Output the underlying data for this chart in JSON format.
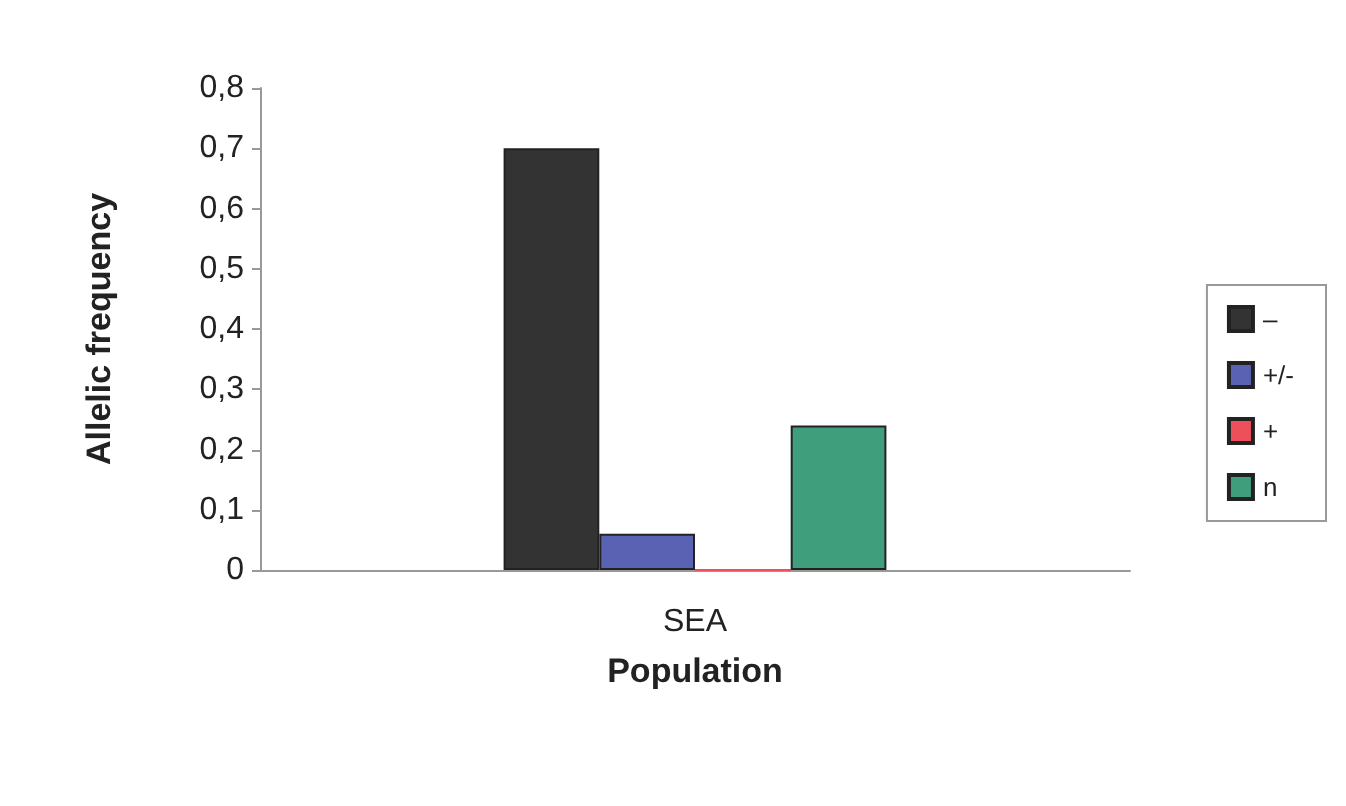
{
  "chart_data": {
    "type": "bar",
    "xlabel": "Population",
    "ylabel": "Allelic frequency",
    "categories": [
      "SEA"
    ],
    "series": [
      {
        "name": "–",
        "color": "#333333",
        "values": [
          0.7
        ]
      },
      {
        "name": "+/-",
        "color": "#5a62b4",
        "values": [
          0.06
        ]
      },
      {
        "name": "+",
        "color": "#ee4f5a",
        "values": [
          0
        ]
      },
      {
        "name": "n",
        "color": "#3f9e7c",
        "values": [
          0.24
        ]
      }
    ],
    "ylim": [
      0,
      0.8
    ],
    "yticks": [
      {
        "value": 0,
        "label": "0"
      },
      {
        "value": 0.1,
        "label": "0,1"
      },
      {
        "value": 0.2,
        "label": "0,2"
      },
      {
        "value": 0.3,
        "label": "0,3"
      },
      {
        "value": 0.4,
        "label": "0,4"
      },
      {
        "value": 0.5,
        "label": "0,5"
      },
      {
        "value": 0.6,
        "label": "0,6"
      },
      {
        "value": 0.7,
        "label": "0,7"
      },
      {
        "value": 0.8,
        "label": "0,8"
      }
    ],
    "grid": false,
    "legend": "right"
  }
}
